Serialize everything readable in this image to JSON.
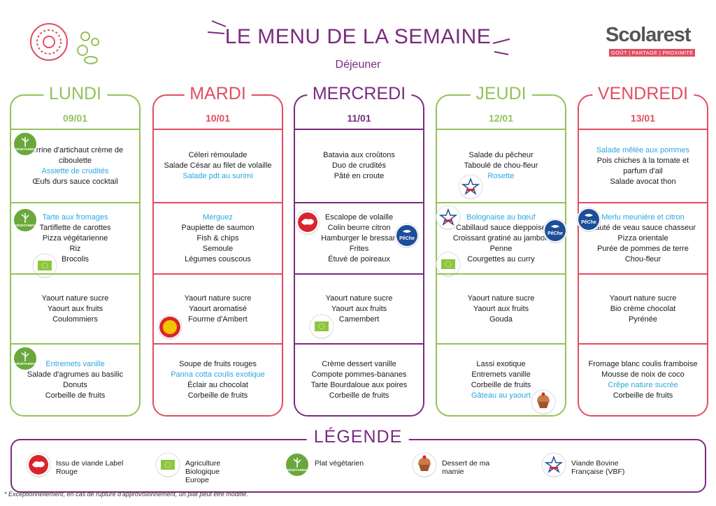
{
  "header": {
    "title": "LE MENU DE LA SEMAINE",
    "subtitle": "Déjeuner",
    "logo": "Scolarest",
    "tagline": [
      "GOÛT",
      "PARTAGE",
      "PROXIMITÉ"
    ]
  },
  "highlight_color": "#2aa6df",
  "days": [
    {
      "name": "LUNDI",
      "date": "09/01",
      "color": "#94c25a",
      "sections": [
        {
          "badges": [
            {
              "icon": "vegetarien",
              "label": "VÉGÉTARIEN"
            }
          ],
          "items": [
            "Verrine d'artichaut crème de ciboulette",
            {
              "text": "Assiette de crudités",
              "highlight": true
            },
            "Œufs durs sauce cocktail"
          ]
        },
        {
          "badges": [
            {
              "icon": "vegetarien",
              "label": "VÉGÉTARIEN"
            },
            {
              "icon": "bio"
            }
          ],
          "items": [
            {
              "text": "Tarte aux fromages",
              "highlight": true
            },
            "Tartiflette de carottes",
            "Pizza végétarienne",
            "Riz",
            "Brocolis"
          ]
        },
        {
          "badges": [],
          "items": [
            "Yaourt nature sucre",
            "Yaourt aux fruits",
            "Coulommiers"
          ]
        },
        {
          "badges": [
            {
              "icon": "vegetarien",
              "label": "VÉGÉTARIEN"
            }
          ],
          "items": [
            {
              "text": "Entremets vanille",
              "highlight": true
            },
            "Salade d'agrumes au basilic",
            "Donuts",
            "Corbeille de fruits"
          ]
        }
      ]
    },
    {
      "name": "MARDI",
      "date": "10/01",
      "color": "#e14d61",
      "sections": [
        {
          "badges": [],
          "items": [
            "Céleri rémoulade",
            "Salade César au filet de volaille",
            {
              "text": "Salade pdt au surimi",
              "highlight": true
            }
          ]
        },
        {
          "badges": [],
          "items": [
            {
              "text": "Merguez",
              "highlight": true
            },
            "Paupiette de saumon",
            "Fish & chips",
            "Semoule",
            "Légumes couscous"
          ]
        },
        {
          "badges": [
            {
              "icon": "aop"
            }
          ],
          "items": [
            "Yaourt nature sucre",
            "Yaourt aromatisé",
            "Fourme d'Ambert"
          ]
        },
        {
          "badges": [],
          "items": [
            "Soupe de fruits rouges",
            {
              "text": "Panna cotta coulis exotique",
              "highlight": true
            },
            "Éclair au chocolat",
            "Corbeille de fruits"
          ]
        }
      ]
    },
    {
      "name": "MERCREDI",
      "date": "11/01",
      "color": "#7a2b7e",
      "sections": [
        {
          "badges": [],
          "items": [
            "Batavia aux croûtons",
            "Duo de crudités",
            "Pâté en croute"
          ]
        },
        {
          "badges": [
            {
              "icon": "labelrouge"
            },
            {
              "icon": "peche",
              "label": "PêChe"
            }
          ],
          "items": [
            "Escalope de volaille",
            "Colin beurre citron",
            "Hamburger le bressan",
            "Frites",
            "Étuvé de poireaux"
          ]
        },
        {
          "badges": [
            {
              "icon": "bio"
            }
          ],
          "items": [
            "Yaourt nature sucre",
            "Yaourt aux fruits",
            "Camembert"
          ]
        },
        {
          "badges": [],
          "items": [
            "Crème dessert vanille",
            "Compote pommes-bananes",
            "Tarte Bourdaloue aux poires",
            "Corbeille de fruits"
          ]
        }
      ]
    },
    {
      "name": "JEUDI",
      "date": "12/01",
      "color": "#94c25a",
      "sections": [
        {
          "badges": [
            {
              "icon": "vbf"
            }
          ],
          "items": [
            "Salade du pêcheur",
            "Taboulé de chou-fleur",
            {
              "text": "Rosette",
              "highlight": true
            }
          ]
        },
        {
          "badges": [
            {
              "icon": "vbf"
            },
            {
              "icon": "peche",
              "label": "PêChe"
            },
            {
              "icon": "bio"
            }
          ],
          "items": [
            {
              "text": "Bolognaise au bœuf",
              "highlight": true
            },
            "Cabillaud sauce dieppoise",
            "Croissant gratiné au jambon",
            "Penne",
            "Courgettes au curry"
          ]
        },
        {
          "badges": [],
          "items": [
            "Yaourt nature sucre",
            "Yaourt aux fruits",
            "Gouda"
          ]
        },
        {
          "badges": [
            {
              "icon": "mamie"
            }
          ],
          "items": [
            "Lassi exotique",
            "Entremets vanille",
            "Corbeille de fruits",
            {
              "text": "Gâteau au yaourt",
              "highlight": true
            }
          ]
        }
      ]
    },
    {
      "name": "VENDREDI",
      "date": "13/01",
      "color": "#e14d61",
      "sections": [
        {
          "badges": [],
          "items": [
            {
              "text": "Salade mêlée aux pommes",
              "highlight": true
            },
            "Pois chiches à la tomate et parfum d'ail",
            "Salade avocat thon"
          ]
        },
        {
          "badges": [
            {
              "icon": "peche",
              "label": "PêChe"
            }
          ],
          "items": [
            {
              "text": "Merlu meunière et citron",
              "highlight": true
            },
            "Sauté de veau sauce chasseur",
            "Pizza orientale",
            "Purée de pommes de terre",
            "Chou-fleur"
          ]
        },
        {
          "badges": [],
          "items": [
            "Yaourt nature sucre",
            "Bio crème chocolat",
            "Pyrénée"
          ]
        },
        {
          "badges": [],
          "items": [
            "Fromage blanc coulis framboise",
            "Mousse de noix de coco",
            {
              "text": "Crêpe nature sucrée",
              "highlight": true
            },
            "Corbeille de fruits"
          ]
        }
      ]
    }
  ],
  "legend": {
    "title": "LÉGENDE",
    "items": [
      {
        "icon": "labelrouge",
        "text": "Issu de viande Label Rouge"
      },
      {
        "icon": "bio",
        "text": "Agriculture Biologique Europe"
      },
      {
        "icon": "vegetarien",
        "label": "VÉGÉTARIEN",
        "text": "Plat végétarien"
      },
      {
        "icon": "mamie",
        "text": "Dessert de ma mamie"
      },
      {
        "icon": "vbf",
        "text": "Viande Bovine Française (VBF)"
      }
    ]
  },
  "footnote": "* Exceptionnellement, en cas de rupture d'approvisionnement, un plat peut être modifié."
}
